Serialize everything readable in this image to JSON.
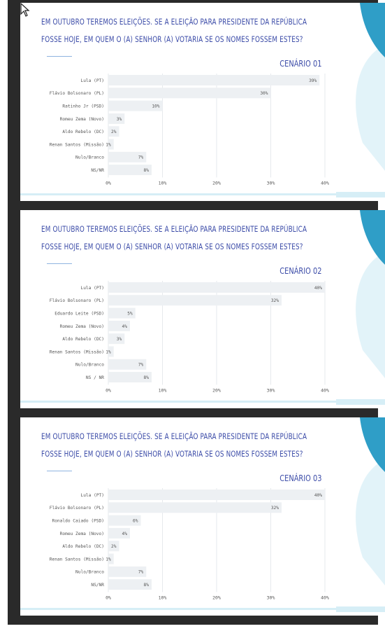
{
  "colors": {
    "title": "#3c4ca8",
    "bar": "#edf0f3",
    "accent_dark": "#2f9ec7",
    "accent_light": "#d6eef6",
    "grid": "#e6e9ec",
    "label": "#555555"
  },
  "chart_data": [
    {
      "type": "bar",
      "orientation": "horizontal",
      "title": "EM OUTUBRO TEREMOS ELEIÇÕES. SE A ELEIÇÃO PARA PRESIDENTE DA REPÚBLICA FOSSE HOJE, EM QUEM O (A) SENHOR (A) VOTARIA SE OS NOMES FOSSEM ESTES?",
      "title_lines": [
        "EM OUTUBRO TEREMOS ELEIÇÕES. SE A ELEIÇÃO PARA PRESIDENTE DA REPÚBLICA",
        "FOSSE HOJE, EM QUEM O (A) SENHOR (A) VOTARIA SE OS NOMES FOSSEM ESTES?"
      ],
      "subtitle": "CENÁRIO 01",
      "categories": [
        "Lula (PT)",
        "Flávio Bolsonaro (PL)",
        "Ratinho Jr (PSD)",
        "Romeu Zema (Novo)",
        "Aldo Rebelo (DC)",
        "Renan Santos (Missão)",
        "Nulo/Branco",
        "NS/NR"
      ],
      "values": [
        39,
        30,
        10,
        3,
        2,
        1,
        7,
        8
      ],
      "value_labels": [
        "39%",
        "30%",
        "10%",
        "3%",
        "2%",
        "1%",
        "7%",
        "8%"
      ],
      "xlim": [
        0,
        40
      ],
      "ticks": [
        "0%",
        "10%",
        "20%",
        "30%",
        "40%"
      ],
      "grid": true
    },
    {
      "type": "bar",
      "orientation": "horizontal",
      "title": "EM OUTUBRO TEREMOS ELEIÇÕES. SE A ELEIÇÃO PARA PRESIDENTE DA REPÚBLICA FOSSE HOJE, EM QUEM O (A) SENHOR (A) VOTARIA SE OS NOMES FOSSEM ESTES?",
      "title_lines": [
        "EM OUTUBRO TEREMOS ELEIÇÕES. SE A ELEIÇÃO PARA PRESIDENTE DA REPÚBLICA",
        "FOSSE HOJE, EM QUEM O (A) SENHOR (A) VOTARIA SE OS NOMES FOSSEM ESTES?"
      ],
      "subtitle": "CENÁRIO 02",
      "categories": [
        "Lula (PT)",
        "Flávio Bolsonaro (PL)",
        "Eduardo Leite (PSD)",
        "Romeu Zema (Novo)",
        "Aldo Rebelo (DC)",
        "Renan Santos (Missão)",
        "Nulo/Branco",
        "NS / NR"
      ],
      "values": [
        40,
        32,
        5,
        4,
        3,
        1,
        7,
        8
      ],
      "value_labels": [
        "40%",
        "32%",
        "5%",
        "4%",
        "3%",
        "1%",
        "7%",
        "8%"
      ],
      "xlim": [
        0,
        40
      ],
      "ticks": [
        "0%",
        "10%",
        "20%",
        "30%",
        "40%"
      ],
      "grid": true
    },
    {
      "type": "bar",
      "orientation": "horizontal",
      "title": "EM OUTUBRO TEREMOS ELEIÇÕES. SE A ELEIÇÃO PARA PRESIDENTE DA REPÚBLICA FOSSE HOJE, EM QUEM O (A) SENHOR (A) VOTARIA SE OS NOMES FOSSEM ESTES?",
      "title_lines": [
        "EM OUTUBRO TEREMOS ELEIÇÕES. SE A ELEIÇÃO PARA PRESIDENTE DA REPÚBLICA",
        "FOSSE HOJE, EM QUEM O (A) SENHOR (A) VOTARIA SE OS NOMES FOSSEM ESTES?"
      ],
      "subtitle": "CENÁRIO 03",
      "categories": [
        "Lula (PT)",
        "Flávio Bolsonaro (PL)",
        "Ronaldo Caiado (PSD)",
        "Romeu Zema (Novo)",
        "Aldo Rebelo (DC)",
        "Renan Santos (Missão)",
        "Nulo/Branco",
        "NS/NR"
      ],
      "values": [
        40,
        32,
        6,
        4,
        2,
        1,
        7,
        8
      ],
      "value_labels": [
        "40%",
        "32%",
        "6%",
        "4%",
        "2%",
        "1%",
        "7%",
        "8%"
      ],
      "xlim": [
        0,
        40
      ],
      "ticks": [
        "0%",
        "10%",
        "20%",
        "30%",
        "40%"
      ],
      "grid": true
    }
  ]
}
